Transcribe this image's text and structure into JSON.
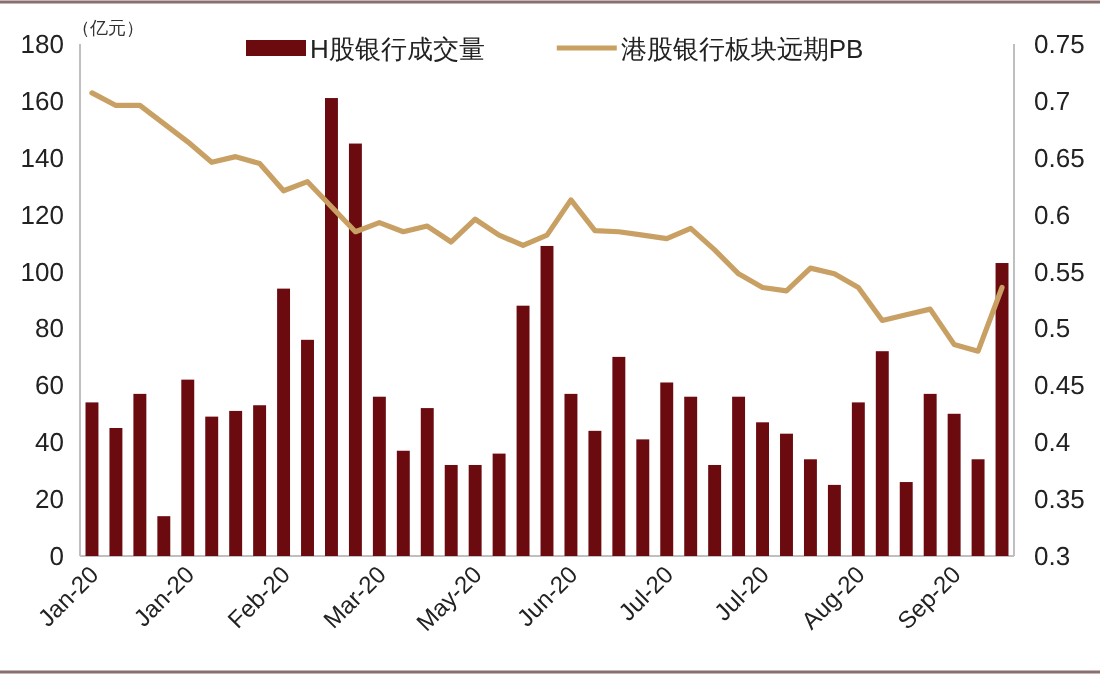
{
  "chart_data": {
    "type": "bar",
    "ylabel": "（亿元）",
    "legend": "top",
    "categories": [
      "Jan-20",
      null,
      null,
      null,
      "Jan-20",
      null,
      null,
      null,
      "Feb-20",
      null,
      null,
      null,
      "Mar-20",
      null,
      null,
      null,
      "May-20",
      null,
      null,
      null,
      "Jun-20",
      null,
      null,
      null,
      "Jul-20",
      null,
      null,
      null,
      "Jul-20",
      null,
      null,
      null,
      "Aug-20",
      null,
      null,
      null,
      "Sep-20",
      null,
      null
    ],
    "series": [
      {
        "name": "H股银行成交量",
        "color": "#6b0b10",
        "values": [
          54,
          45,
          57,
          14,
          62,
          49,
          51,
          53,
          94,
          76,
          161,
          145,
          56,
          37,
          52,
          32,
          32,
          36,
          88,
          109,
          57,
          44,
          70,
          41,
          61,
          56,
          32,
          56,
          47,
          43,
          34,
          25,
          54,
          72,
          26,
          57,
          50,
          34,
          103
        ]
      },
      {
        "name": "港股银行板块远期PB",
        "type": "line",
        "axis": "y2",
        "color": "#c9a063",
        "values": [
          0.707,
          0.696,
          0.696,
          0.68,
          0.664,
          0.646,
          0.651,
          0.645,
          0.621,
          0.629,
          0.607,
          0.585,
          0.593,
          0.585,
          0.59,
          0.576,
          0.596,
          0.582,
          0.573,
          0.582,
          0.613,
          0.586,
          0.585,
          0.582,
          0.579,
          0.588,
          0.569,
          0.548,
          0.536,
          0.533,
          0.553,
          0.548,
          0.536,
          0.507,
          0.512,
          0.517,
          0.486,
          0.48,
          0.536
        ]
      }
    ],
    "ylim": [
      0,
      180
    ],
    "yticks": [
      0,
      20,
      40,
      60,
      80,
      100,
      120,
      140,
      160,
      180
    ],
    "y2lim": [
      0.3,
      0.75
    ],
    "y2ticks": [
      0.3,
      0.35,
      0.4,
      0.45,
      0.5,
      0.55,
      0.6,
      0.65,
      0.7,
      0.75
    ]
  }
}
